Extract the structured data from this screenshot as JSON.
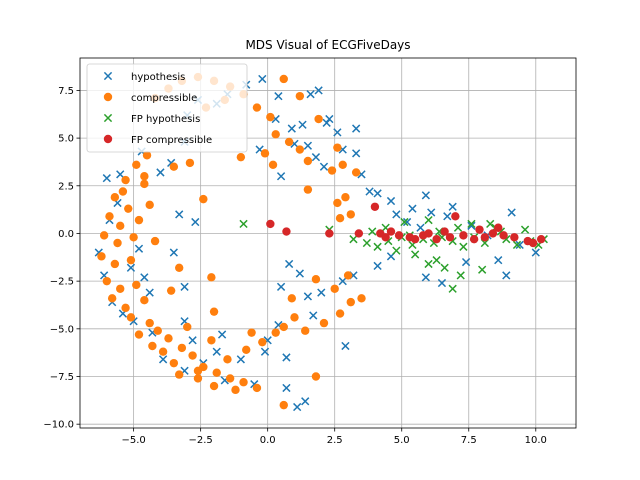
{
  "chart_data": {
    "type": "scatter",
    "title": "MDS Visual of ECGFiveDays",
    "xlabel": "",
    "ylabel": "",
    "xlim": [
      -7.0,
      11.5
    ],
    "ylim": [
      -10.2,
      9.2
    ],
    "xticks": [
      -5.0,
      -2.5,
      0.0,
      2.5,
      5.0,
      7.5,
      10.0
    ],
    "xtick_labels": [
      "−5.0",
      "−2.5",
      "0.0",
      "2.5",
      "5.0",
      "7.5",
      "10.0"
    ],
    "yticks": [
      -10.0,
      -7.5,
      -5.0,
      -2.5,
      0.0,
      2.5,
      5.0,
      7.5
    ],
    "ytick_labels": [
      "−10.0",
      "−7.5",
      "−5.0",
      "−2.5",
      "0.0",
      "2.5",
      "5.0",
      "7.5"
    ],
    "grid": true,
    "legend": "top-left",
    "series": [
      {
        "name": "hypothesis",
        "marker": "x",
        "color": "#1f77b4",
        "points": [
          [
            -6.0,
            2.9
          ],
          [
            -5.6,
            1.6
          ],
          [
            -5.9,
            0.7
          ],
          [
            -6.3,
            -1.0
          ],
          [
            -6.1,
            -2.2
          ],
          [
            -5.8,
            -3.6
          ],
          [
            -5.4,
            -4.2
          ],
          [
            -4.6,
            -2.3
          ],
          [
            -4.4,
            -3.1
          ],
          [
            -3.5,
            -1.0
          ],
          [
            -3.1,
            -2.8
          ],
          [
            -3.3,
            1.0
          ],
          [
            -3.6,
            3.7
          ],
          [
            -3.1,
            4.8
          ],
          [
            -3.0,
            6.2
          ],
          [
            -2.6,
            7.0
          ],
          [
            -1.9,
            6.8
          ],
          [
            -1.5,
            7.3
          ],
          [
            -0.8,
            7.8
          ],
          [
            -0.2,
            8.1
          ],
          [
            0.3,
            6.0
          ],
          [
            0.4,
            7.2
          ],
          [
            0.9,
            5.5
          ],
          [
            1.3,
            5.7
          ],
          [
            1.0,
            4.7
          ],
          [
            1.5,
            4.6
          ],
          [
            1.8,
            4.0
          ],
          [
            2.1,
            3.5
          ],
          [
            2.2,
            5.8
          ],
          [
            2.6,
            5.3
          ],
          [
            2.8,
            4.4
          ],
          [
            3.3,
            4.2
          ],
          [
            3.5,
            3.1
          ],
          [
            3.8,
            2.2
          ],
          [
            4.1,
            2.1
          ],
          [
            4.6,
            1.7
          ],
          [
            5.2,
            0.6
          ],
          [
            5.7,
            0.3
          ],
          [
            5.9,
            2.0
          ],
          [
            6.1,
            1.1
          ],
          [
            6.9,
            1.4
          ],
          [
            7.6,
            0.4
          ],
          [
            8.2,
            -0.1
          ],
          [
            8.6,
            -1.4
          ],
          [
            9.1,
            1.1
          ],
          [
            9.4,
            -0.6
          ],
          [
            10.0,
            -1.0
          ],
          [
            8.9,
            -2.2
          ],
          [
            7.4,
            -1.5
          ],
          [
            6.5,
            -2.6
          ],
          [
            5.9,
            -2.3
          ],
          [
            4.6,
            -1.2
          ],
          [
            4.1,
            -1.7
          ],
          [
            3.2,
            -2.2
          ],
          [
            2.8,
            -2.5
          ],
          [
            2.0,
            -3.1
          ],
          [
            1.5,
            -3.3
          ],
          [
            1.7,
            -4.3
          ],
          [
            0.4,
            -4.8
          ],
          [
            0.0,
            -5.6
          ],
          [
            -0.1,
            -6.2
          ],
          [
            0.7,
            -6.5
          ],
          [
            -1.0,
            -6.6
          ],
          [
            -1.9,
            -6.2
          ],
          [
            -2.4,
            -6.8
          ],
          [
            -3.1,
            -7.2
          ],
          [
            -3.9,
            -6.6
          ],
          [
            -4.3,
            -5.2
          ],
          [
            -5.0,
            -4.6
          ],
          [
            -3.1,
            -4.6
          ],
          [
            -1.6,
            -7.7
          ],
          [
            -0.5,
            -7.9
          ],
          [
            0.7,
            -8.1
          ],
          [
            1.4,
            -8.8
          ],
          [
            1.1,
            -9.1
          ],
          [
            2.9,
            -5.9
          ],
          [
            1.2,
            -2.1
          ],
          [
            0.8,
            -1.6
          ],
          [
            0.5,
            -2.8
          ],
          [
            -1.7,
            -5.3
          ],
          [
            -2.8,
            -5.6
          ],
          [
            -4.8,
            -0.8
          ],
          [
            -5.1,
            -1.8
          ],
          [
            -5.5,
            3.1
          ],
          [
            -4.7,
            4.3
          ],
          [
            -4.0,
            3.2
          ],
          [
            -2.7,
            0.6
          ],
          [
            -0.3,
            4.4
          ],
          [
            0.5,
            3.0
          ],
          [
            1.9,
            7.5
          ],
          [
            1.6,
            7.3
          ],
          [
            3.3,
            5.5
          ],
          [
            2.3,
            6.0
          ],
          [
            4.8,
            1.0
          ],
          [
            5.4,
            1.3
          ],
          [
            6.7,
            0.9
          ]
        ]
      },
      {
        "name": "compressible",
        "marker": "o",
        "color": "#ff7f0e",
        "points": [
          [
            -4.5,
            4.1
          ],
          [
            -4.9,
            3.6
          ],
          [
            -5.3,
            2.8
          ],
          [
            -4.6,
            2.6
          ],
          [
            -5.7,
            1.9
          ],
          [
            -5.2,
            1.3
          ],
          [
            -4.4,
            1.5
          ],
          [
            -5.9,
            0.9
          ],
          [
            -5.5,
            0.4
          ],
          [
            -4.8,
            0.7
          ],
          [
            -6.1,
            -0.1
          ],
          [
            -5.6,
            -0.5
          ],
          [
            -5.0,
            -0.2
          ],
          [
            -6.2,
            -1.2
          ],
          [
            -5.7,
            -1.6
          ],
          [
            -5.1,
            -1.4
          ],
          [
            -6.0,
            -2.5
          ],
          [
            -5.5,
            -2.9
          ],
          [
            -4.9,
            -2.7
          ],
          [
            -5.8,
            -3.4
          ],
          [
            -5.3,
            -3.9
          ],
          [
            -4.6,
            -3.5
          ],
          [
            -5.1,
            -4.4
          ],
          [
            -4.4,
            -4.7
          ],
          [
            -4.8,
            -5.3
          ],
          [
            -4.1,
            -5.1
          ],
          [
            -4.3,
            -5.9
          ],
          [
            -3.7,
            -5.5
          ],
          [
            -3.9,
            -6.2
          ],
          [
            -3.2,
            -6.0
          ],
          [
            -3.5,
            -6.8
          ],
          [
            -2.8,
            -6.4
          ],
          [
            -2.4,
            -7.0
          ],
          [
            -1.9,
            -7.3
          ],
          [
            -1.4,
            -7.6
          ],
          [
            -0.9,
            -7.8
          ],
          [
            -0.4,
            -8.1
          ],
          [
            -1.2,
            -8.2
          ],
          [
            -2.0,
            -8.0
          ],
          [
            -2.6,
            -7.6
          ],
          [
            -3.3,
            -7.4
          ],
          [
            -1.5,
            -6.6
          ],
          [
            -0.8,
            -6.1
          ],
          [
            -0.2,
            -5.7
          ],
          [
            0.3,
            -5.2
          ],
          [
            0.6,
            -4.9
          ],
          [
            1.0,
            -4.4
          ],
          [
            1.4,
            -5.1
          ],
          [
            2.1,
            -4.7
          ],
          [
            2.7,
            -4.2
          ],
          [
            3.1,
            -3.6
          ],
          [
            3.5,
            -3.4
          ],
          [
            2.5,
            -2.9
          ],
          [
            3.0,
            -2.2
          ],
          [
            1.8,
            -2.4
          ],
          [
            -3.5,
            3.5
          ],
          [
            -2.9,
            3.7
          ],
          [
            -2.4,
            1.8
          ],
          [
            -3.3,
            -1.8
          ],
          [
            -2.1,
            -2.3
          ],
          [
            -3.6,
            -3.0
          ],
          [
            -3.0,
            -4.9
          ],
          [
            -2.1,
            -5.6
          ],
          [
            -0.6,
            -5.2
          ],
          [
            0.6,
            -9.0
          ],
          [
            1.8,
            -7.5
          ],
          [
            -4.2,
            7.1
          ],
          [
            -3.7,
            7.6
          ],
          [
            -3.2,
            8.0
          ],
          [
            -2.6,
            8.2
          ],
          [
            -2.0,
            8.0
          ],
          [
            -1.4,
            7.7
          ],
          [
            -0.9,
            7.3
          ],
          [
            -1.6,
            7.0
          ],
          [
            -2.3,
            6.6
          ],
          [
            -0.4,
            6.6
          ],
          [
            0.1,
            6.1
          ],
          [
            0.3,
            5.2
          ],
          [
            0.8,
            4.8
          ],
          [
            -0.1,
            4.2
          ],
          [
            0.2,
            3.6
          ],
          [
            1.2,
            4.4
          ],
          [
            1.5,
            3.8
          ],
          [
            2.4,
            3.3
          ],
          [
            2.8,
            3.6
          ],
          [
            3.3,
            3.2
          ],
          [
            2.9,
            1.9
          ],
          [
            3.1,
            1.0
          ],
          [
            2.7,
            0.8
          ],
          [
            2.6,
            1.6
          ],
          [
            0.6,
            8.1
          ],
          [
            1.2,
            7.2
          ],
          [
            1.9,
            6.0
          ],
          [
            2.6,
            4.5
          ],
          [
            1.5,
            2.3
          ],
          [
            -1.0,
            4.0
          ],
          [
            -4.6,
            3.0
          ],
          [
            -5.4,
            2.2
          ],
          [
            -4.2,
            -0.4
          ],
          [
            -2.6,
            -7.2
          ],
          [
            -2.0,
            -4.1
          ],
          [
            0.9,
            -3.4
          ]
        ]
      },
      {
        "name": "FP hypothesis",
        "marker": "x",
        "color": "#2ca02c",
        "points": [
          [
            -0.9,
            0.5
          ],
          [
            2.3,
            0.2
          ],
          [
            3.2,
            -0.3
          ],
          [
            3.7,
            -0.5
          ],
          [
            4.1,
            -0.7
          ],
          [
            4.5,
            -0.4
          ],
          [
            5.0,
            -0.2
          ],
          [
            5.4,
            -0.6
          ],
          [
            5.8,
            -0.3
          ],
          [
            6.2,
            -0.5
          ],
          [
            6.5,
            -0.2
          ],
          [
            6.9,
            -0.4
          ],
          [
            7.3,
            -0.7
          ],
          [
            7.7,
            -0.2
          ],
          [
            8.1,
            -0.5
          ],
          [
            8.5,
            0.3
          ],
          [
            8.9,
            -0.3
          ],
          [
            9.3,
            -0.6
          ],
          [
            9.8,
            -0.4
          ],
          [
            10.3,
            -0.3
          ],
          [
            5.1,
            0.6
          ],
          [
            6.0,
            0.7
          ],
          [
            7.1,
            0.3
          ],
          [
            8.3,
            0.5
          ],
          [
            5.5,
            -1.1
          ],
          [
            6.3,
            -1.4
          ],
          [
            6.6,
            -1.8
          ],
          [
            7.2,
            -2.2
          ],
          [
            6.0,
            -1.6
          ],
          [
            6.9,
            -2.9
          ],
          [
            8.0,
            -1.9
          ],
          [
            4.8,
            -0.9
          ],
          [
            3.9,
            0.1
          ],
          [
            4.4,
            0.3
          ],
          [
            7.6,
            0.5
          ],
          [
            8.7,
            0.1
          ],
          [
            9.6,
            0.2
          ],
          [
            10.1,
            -0.6
          ],
          [
            5.3,
            -0.1
          ],
          [
            6.4,
            0.1
          ]
        ]
      },
      {
        "name": "FP compressible",
        "marker": "o",
        "color": "#d62728",
        "points": [
          [
            0.1,
            0.5
          ],
          [
            0.7,
            0.1
          ],
          [
            2.3,
            0.0
          ],
          [
            3.4,
            0.0
          ],
          [
            4.0,
            1.4
          ],
          [
            4.4,
            -0.2
          ],
          [
            4.9,
            -0.1
          ],
          [
            5.3,
            -0.2
          ],
          [
            5.8,
            -0.1
          ],
          [
            6.3,
            -0.3
          ],
          [
            6.8,
            -0.2
          ],
          [
            7.0,
            0.9
          ],
          [
            7.3,
            -0.1
          ],
          [
            7.7,
            -0.3
          ],
          [
            8.1,
            -0.2
          ],
          [
            8.4,
            0.0
          ],
          [
            8.8,
            -0.1
          ],
          [
            9.2,
            -0.2
          ],
          [
            9.7,
            -0.4
          ],
          [
            10.2,
            -0.3
          ],
          [
            4.6,
            0.1
          ],
          [
            6.0,
            0.0
          ],
          [
            7.9,
            0.2
          ],
          [
            8.6,
            0.3
          ],
          [
            5.5,
            -0.3
          ],
          [
            9.9,
            -0.5
          ],
          [
            4.2,
            0.0
          ],
          [
            6.6,
            0.1
          ]
        ]
      }
    ]
  }
}
